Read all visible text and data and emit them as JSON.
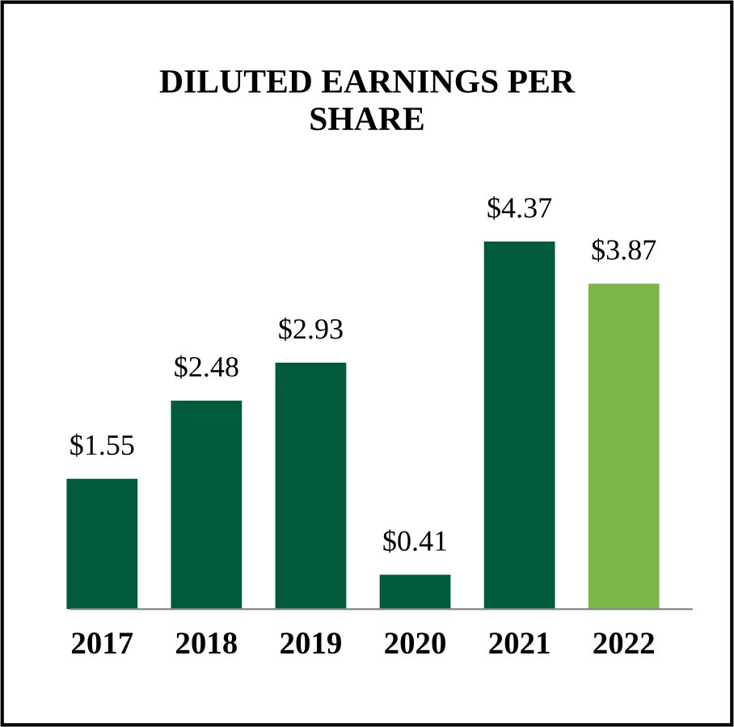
{
  "chart_data": {
    "type": "bar",
    "title": "DILUTED EARNINGS PER\nSHARE",
    "categories": [
      "2017",
      "2018",
      "2019",
      "2020",
      "2021",
      "2022"
    ],
    "values": [
      1.55,
      2.48,
      2.93,
      0.41,
      4.37,
      3.87
    ],
    "colors": [
      "#005a3c",
      "#005a3c",
      "#005a3c",
      "#005a3c",
      "#005a3c",
      "#7ab648"
    ],
    "value_labels": [
      "$1.55",
      "$2.48",
      "$2.93",
      "$0.41",
      "$4.37",
      "$3.87"
    ],
    "tick_labels": "x",
    "grid": false,
    "legend": false
  }
}
